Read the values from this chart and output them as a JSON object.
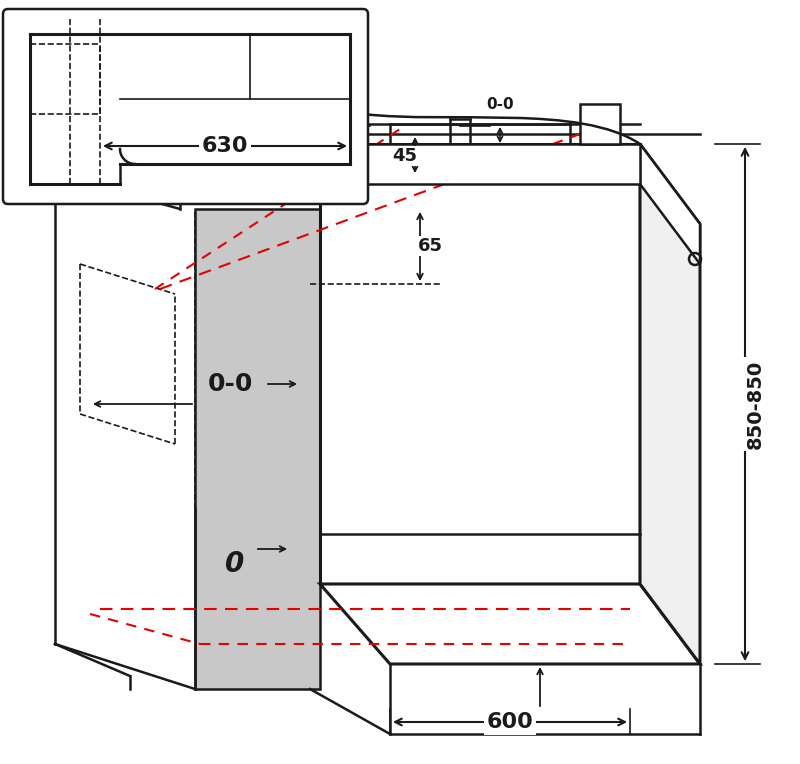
{
  "bg_color": "#ffffff",
  "line_color": "#1a1a1a",
  "gray_fill": "#c8c8c8",
  "red_dashed": "#e60000",
  "dim_color": "#1a1a1a",
  "figsize": [
    8.0,
    7.64
  ],
  "dpi": 100,
  "labels": {
    "top_label": "0",
    "mid_label": "0-0",
    "dim_600": "600",
    "dim_850": "850-850",
    "dim_65": "65",
    "dim_45": "45",
    "dim_0_0_bottom": "0-0",
    "dim_630": "630"
  }
}
